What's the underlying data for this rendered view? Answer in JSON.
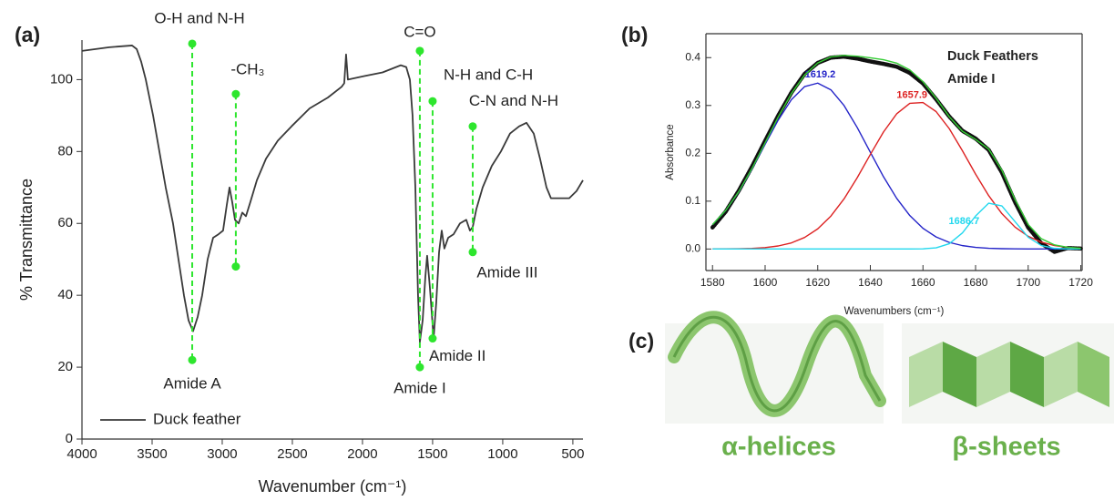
{
  "chart_data": [
    {
      "type": "line",
      "xlabel": "Wavenumber (cm⁻¹)",
      "ylabel": "% Transmittance",
      "x": [
        4000,
        3805,
        3643,
        3610,
        3578,
        3545,
        3493,
        3448,
        3403,
        3351,
        3312,
        3273,
        3240,
        3208,
        3175,
        3143,
        3104,
        3065,
        3026,
        2994,
        2968,
        2948,
        2929,
        2909,
        2883,
        2857,
        2831,
        2799,
        2753,
        2688,
        2604,
        2506,
        2377,
        2247,
        2149,
        2130,
        2117,
        2104,
        1987,
        1857,
        1727,
        1688,
        1662,
        1643,
        1623,
        1604,
        1591,
        1571,
        1552,
        1539,
        1519,
        1493,
        1474,
        1454,
        1435,
        1416,
        1389,
        1350,
        1305,
        1260,
        1234,
        1214,
        1188,
        1143,
        1078,
        1013,
        948,
        883,
        831,
        779,
        734,
        688,
        656,
        591,
        526,
        474,
        428
      ],
      "series": [
        {
          "name": "Duck feather",
          "color": "#3a3a3a",
          "values": [
            108,
            109,
            109.5,
            108.5,
            105,
            100,
            90,
            80,
            70,
            60,
            50,
            40,
            33,
            30,
            34,
            40,
            50,
            56,
            57,
            58,
            65,
            70,
            66,
            61,
            60,
            63,
            62,
            66,
            72,
            78,
            83,
            87,
            92,
            95,
            98,
            99,
            107,
            100,
            101,
            102,
            104,
            103.5,
            100,
            90,
            70,
            40,
            27,
            33,
            45,
            51,
            42,
            28,
            38,
            52,
            58,
            53,
            56,
            57,
            60,
            61,
            58,
            59,
            64,
            70,
            76,
            80,
            85,
            87,
            88,
            85,
            78,
            70,
            67,
            67,
            67,
            69,
            72
          ]
        }
      ],
      "xlim": [
        4000,
        428
      ],
      "ylim": [
        0,
        111
      ],
      "xticks": [
        4000,
        3500,
        3000,
        2500,
        2000,
        1500,
        1000,
        500
      ],
      "yticks": [
        0,
        20,
        40,
        60,
        80,
        100
      ],
      "legend": "lower left",
      "annotation_color": "#2ee62e",
      "annotations": [
        {
          "x": 3214,
          "y_top": 110,
          "y_bottom": 22,
          "top_text": "O-H and N-H",
          "bottom_text": "Amide A"
        },
        {
          "x": 2903,
          "y_top": 96,
          "y_bottom": 48,
          "top_text": "-CH₃"
        },
        {
          "x": 1591,
          "y_top": 108,
          "y_bottom": 20,
          "top_text": "C=O",
          "bottom_text": "Amide I"
        },
        {
          "x": 1500,
          "y_top": 94,
          "y_bottom": 28,
          "top_text": "N-H and C-H",
          "bottom_text": "Amide II"
        },
        {
          "x": 1214,
          "y_top": 87,
          "y_bottom": 52,
          "top_text": "C-N and N-H",
          "bottom_text": "Amide III"
        }
      ]
    },
    {
      "type": "line",
      "title": [
        "Duck Feathers",
        "Amide I"
      ],
      "xlabel": "Wavenumbers (cm⁻¹)",
      "ylabel": "Absorbance",
      "x": [
        1580,
        1585,
        1590,
        1595,
        1600,
        1605,
        1610,
        1615,
        1620,
        1625,
        1630,
        1635,
        1640,
        1645,
        1650,
        1655,
        1660,
        1665,
        1670,
        1675,
        1680,
        1685,
        1690,
        1695,
        1700,
        1705,
        1710,
        1715,
        1720
      ],
      "series": [
        {
          "color": "#111111",
          "marker": "dot",
          "values": [
            0.045,
            0.078,
            0.122,
            0.172,
            0.226,
            0.279,
            0.327,
            0.366,
            0.389,
            0.4,
            0.402,
            0.398,
            0.392,
            0.387,
            0.381,
            0.368,
            0.346,
            0.313,
            0.277,
            0.247,
            0.231,
            0.207,
            0.16,
            0.098,
            0.045,
            0.012,
            -0.006,
            0.002,
            0.001
          ]
        },
        {
          "color": "#2424c8",
          "peak": 1619.2,
          "values": [
            0.0508,
            0.0804,
            0.1195,
            0.1669,
            0.2189,
            0.2697,
            0.3122,
            0.3394,
            0.3467,
            0.3327,
            0.2999,
            0.254,
            0.2021,
            0.151,
            0.106,
            0.0699,
            0.0433,
            0.0252,
            0.0138,
            0.0071,
            0.0034,
            0.0015,
            0.0007,
            0.0003,
            0.0001,
            0,
            0,
            0,
            0
          ]
        },
        {
          "color": "#dd2222",
          "peak": 1657.9,
          "values": [
            0.0001,
            0.0002,
            0.0005,
            0.0013,
            0.003,
            0.0064,
            0.0128,
            0.0241,
            0.0421,
            0.0688,
            0.1048,
            0.149,
            0.1976,
            0.2446,
            0.2825,
            0.3044,
            0.3061,
            0.2872,
            0.2515,
            0.2054,
            0.1566,
            0.1114,
            0.0739,
            0.0458,
            0.0265,
            0.0143,
            0.0072,
            0.0034,
            0.0015
          ]
        },
        {
          "color": "#22d8ee",
          "peak": 1686.7,
          "values": [
            0,
            0,
            0,
            0,
            0,
            0,
            0,
            0,
            0,
            0,
            0,
            0,
            0,
            0,
            0,
            0,
            0.0004,
            0.0025,
            0.0111,
            0.0336,
            0.069,
            0.0958,
            0.09,
            0.0572,
            0.0246,
            0.0072,
            0.0014,
            0.0002,
            0
          ]
        },
        {
          "color": "#33cc33",
          "values": [
            0.0509,
            0.0806,
            0.12,
            0.1682,
            0.2219,
            0.2761,
            0.325,
            0.3635,
            0.3888,
            0.4015,
            0.4047,
            0.403,
            0.3997,
            0.3956,
            0.3885,
            0.3743,
            0.3498,
            0.3149,
            0.2764,
            0.2461,
            0.229,
            0.2087,
            0.1646,
            0.1033,
            0.0512,
            0.0215,
            0.0086,
            0.0036,
            0.0015
          ]
        }
      ],
      "xlim": [
        1577.5,
        1720.5
      ],
      "ylim": [
        -0.045,
        0.45
      ],
      "xticks": [
        1580,
        1600,
        1620,
        1640,
        1660,
        1680,
        1700,
        1720
      ],
      "yticks": [
        {
          "value": 0,
          "label": "0.0"
        },
        0.1,
        0.2,
        0.3,
        0.4
      ]
    }
  ],
  "panel_labels": [
    "(a)",
    "(b)",
    "(c)"
  ],
  "structures": [
    "α-helices",
    "β-sheets"
  ]
}
